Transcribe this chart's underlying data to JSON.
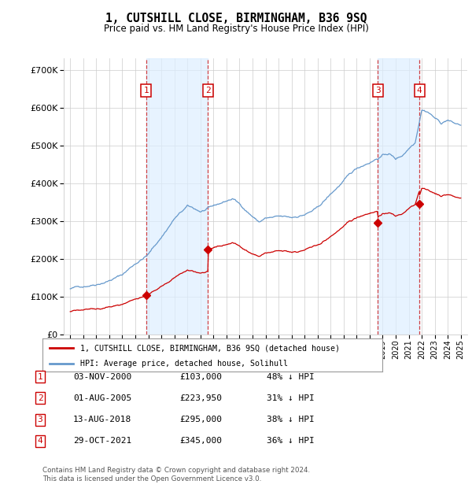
{
  "title": "1, CUTSHILL CLOSE, BIRMINGHAM, B36 9SQ",
  "subtitle": "Price paid vs. HM Land Registry's House Price Index (HPI)",
  "background_color": "#ffffff",
  "plot_bg_color": "#ffffff",
  "grid_color": "#cccccc",
  "hpi_color": "#6699cc",
  "price_color": "#cc0000",
  "sale_marker_color": "#cc0000",
  "vline_color": "#cc2222",
  "highlight_bg": "#ddeeff",
  "transactions": [
    {
      "num": 1,
      "date_dec": 2000.84,
      "price": 103000,
      "label": "03-NOV-2000",
      "pct": "48% ↓ HPI"
    },
    {
      "num": 2,
      "date_dec": 2005.58,
      "price": 223950,
      "label": "01-AUG-2005",
      "pct": "31% ↓ HPI"
    },
    {
      "num": 3,
      "date_dec": 2018.62,
      "price": 295000,
      "label": "13-AUG-2018",
      "pct": "38% ↓ HPI"
    },
    {
      "num": 4,
      "date_dec": 2021.83,
      "price": 345000,
      "label": "29-OCT-2021",
      "pct": "36% ↓ HPI"
    }
  ],
  "legend_line1": "1, CUTSHILL CLOSE, BIRMINGHAM, B36 9SQ (detached house)",
  "legend_line2": "HPI: Average price, detached house, Solihull",
  "footer": "Contains HM Land Registry data © Crown copyright and database right 2024.\nThis data is licensed under the Open Government Licence v3.0.",
  "ylim": [
    0,
    730000
  ],
  "yticks": [
    0,
    100000,
    200000,
    300000,
    400000,
    500000,
    600000,
    700000
  ],
  "xlim_start": 1994.5,
  "xlim_end": 2025.5
}
